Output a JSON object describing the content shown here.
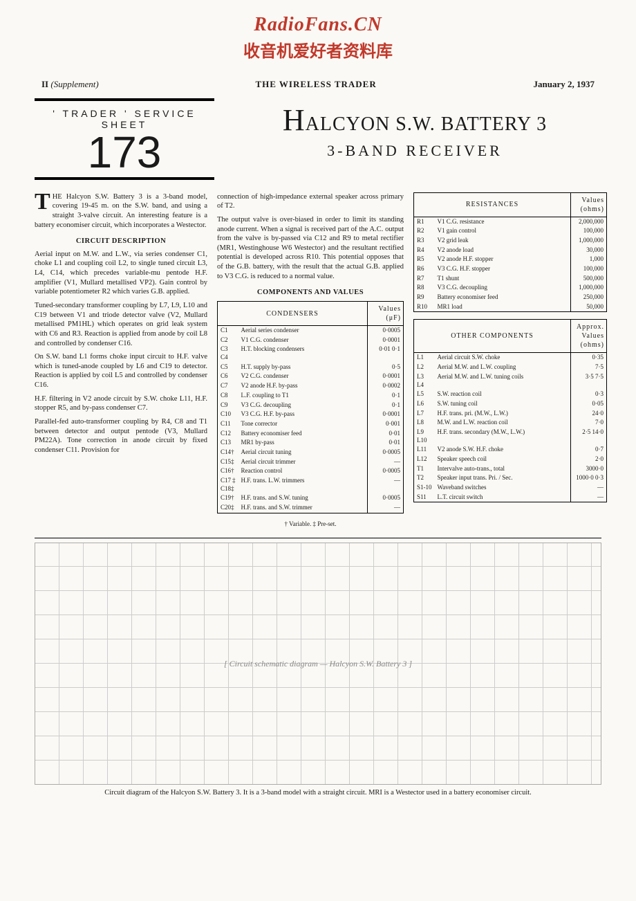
{
  "watermark": {
    "en": "RadioFans.CN",
    "cn": "收音机爱好者资料库"
  },
  "header": {
    "left_prefix": "II",
    "left_suffix": "(Supplement)",
    "center": "THE WIRELESS TRADER",
    "right": "January 2, 1937"
  },
  "sheet": {
    "label": "' TRADER '  SERVICE  SHEET",
    "number": "173"
  },
  "title": {
    "main_prefix": "H",
    "main_rest": "ALCYON S.W. BATTERY 3",
    "subtitle": "3-BAND  RECEIVER"
  },
  "body": {
    "col1": {
      "dropcap": "T",
      "p1": "HE Halcyon S.W. Battery 3 is a 3-band model, covering 19-45 m. on the S.W. band, and using a straight 3-valve circuit. An interesting feature is a battery economiser circuit, which incorporates a Westector.",
      "circuit_head": "CIRCUIT DESCRIPTION",
      "p2": "Aerial input on M.W. and L.W., via series condenser C1, choke L1 and coupling coil L2, to single tuned circuit L3, L4, C14, which precedes variable-mu pentode H.F. amplifier (V1, Mullard metallised VP2). Gain control by variable potentiometer R2 which varies G.B. applied.",
      "p3": "Tuned-secondary transformer coupling by L7, L9, L10 and C19 between V1 and triode detector valve (V2, Mullard metallised PM1HL) which operates on grid leak system with C6 and R3. Reaction is applied from anode by coil L8 and controlled by condenser C16.",
      "p4": "On S.W. band L1 forms choke input circuit to H.F. valve which is tuned-anode coupled by L6 and C19 to detector. Reaction is applied by coil L5 and controlled by condenser C16.",
      "p5": "H.F. filtering in V2 anode circuit by S.W. choke L11, H.F. stopper R5, and by-pass condenser C7.",
      "p6": "Parallel-fed auto-transformer coupling by R4, C8 and T1 between detector and output pentode (V3, Mullard PM22A). Tone correction in anode circuit by fixed condenser C11. Provision for"
    },
    "col2": {
      "p1": "connection of high-impedance external speaker across primary of T2.",
      "p2": "The output valve is over-biased in order to limit its standing anode current. When a signal is received part of the A.C. output from the valve is by-passed via C12 and R9 to metal rectifier (MR1, Westinghouse W6 Westector) and the resultant rectified potential is developed across R10. This potential opposes that of the G.B. battery, with the result that the actual G.B. applied to V3 C.G. is reduced to a normal value.",
      "comp_head": "COMPONENTS AND VALUES"
    }
  },
  "tables": {
    "condensers": {
      "title": "CONDENSERS",
      "val_head": "Values (μF)",
      "rows": [
        [
          "C1",
          "Aerial series condenser",
          "0·0005"
        ],
        [
          "C2",
          "V1 C.G. condenser",
          "0·0001"
        ],
        [
          "C3 C4",
          "H.T. blocking condensers",
          "0·01 0·1"
        ],
        [
          "C5",
          "H.T. supply by-pass",
          "0·5"
        ],
        [
          "C6",
          "V2 C.G. condenser",
          "0·0001"
        ],
        [
          "C7",
          "V2 anode H.F. by-pass",
          "0·0002"
        ],
        [
          "C8",
          "L.F. coupling to T1",
          "0·1"
        ],
        [
          "C9",
          "V3 C.G. decoupling",
          "0·1"
        ],
        [
          "C10",
          "V3 C.G. H.F. by-pass",
          "0·0001"
        ],
        [
          "C11",
          "Tone corrector",
          "0·001"
        ],
        [
          "C12",
          "Battery economiser feed",
          "0·01"
        ],
        [
          "C13",
          "MR1 by-pass",
          "0·01"
        ],
        [
          "C14†",
          "Aerial circuit tuning",
          "0·0005"
        ],
        [
          "C15‡",
          "Aerial circuit trimmer",
          "—"
        ],
        [
          "C16†",
          "Reaction control",
          "0·0005"
        ],
        [
          "C17‡ C18‡",
          "H.F. trans. L.W. trimmers",
          "—"
        ],
        [
          "C19†",
          "H.F. trans. and S.W. tuning",
          "0·0005"
        ],
        [
          "C20‡",
          "H.F. trans. and S.W. trimmer",
          "—"
        ]
      ],
      "footnote": "† Variable.    ‡ Pre-set."
    },
    "resistances": {
      "title": "RESISTANCES",
      "val_head": "Values (ohms)",
      "rows": [
        [
          "R1",
          "V1 C.G. resistance",
          "2,000,000"
        ],
        [
          "R2",
          "V1 gain control",
          "100,000"
        ],
        [
          "R3",
          "V2 grid leak",
          "1,000,000"
        ],
        [
          "R4",
          "V2 anode load",
          "30,000"
        ],
        [
          "R5",
          "V2 anode H.F. stopper",
          "1,000"
        ],
        [
          "R6",
          "V3 C.G. H.F. stopper",
          "100,000"
        ],
        [
          "R7",
          "T1 shunt",
          "500,000"
        ],
        [
          "R8",
          "V3 C.G. decoupling",
          "1,000,000"
        ],
        [
          "R9",
          "Battery economiser feed",
          "250,000"
        ],
        [
          "R10",
          "MR1 load",
          "50,000"
        ]
      ]
    },
    "other": {
      "title": "OTHER COMPONENTS",
      "val_head": "Approx. Values (ohms)",
      "rows": [
        [
          "L1",
          "Aerial circuit S.W. choke",
          "0·35"
        ],
        [
          "L2",
          "Aerial M.W. and L.W. coupling",
          "7·5"
        ],
        [
          "L3 L4",
          "Aerial M.W. and L.W. tuning coils",
          "3·5 7·5"
        ],
        [
          "L5",
          "S.W. reaction coil",
          "0·3"
        ],
        [
          "L6",
          "S.W. tuning coil",
          "0·05"
        ],
        [
          "L7",
          "H.F. trans. pri. (M.W., L.W.)",
          "24·0"
        ],
        [
          "L8",
          "M.W. and L.W. reaction coil",
          "7·0"
        ],
        [
          "L9 L10",
          "H.F. trans. secondary (M.W., L.W.)",
          "2·5 14·0"
        ],
        [
          "L11",
          "V2 anode S.W. H.F. choke",
          "0·7"
        ],
        [
          "L12",
          "Speaker speech coil",
          "2·0"
        ],
        [
          "T1",
          "Intervalve auto-trans., total",
          "3000·0"
        ],
        [
          "T2",
          "Speaker input trans. Pri. / Sec.",
          "1000·0 0·3"
        ],
        [
          "S1-10",
          "Waveband switches",
          "—"
        ],
        [
          "S11",
          "L.T. circuit switch",
          "—"
        ]
      ]
    }
  },
  "circuit": {
    "placeholder": "[ Circuit schematic diagram — Halcyon S.W. Battery 3 ]",
    "caption": "Circuit diagram of the Halcyon S.W. Battery 3.  It is a 3-band model with a straight circuit.  MRI is a Westector used in a battery economiser circuit."
  }
}
